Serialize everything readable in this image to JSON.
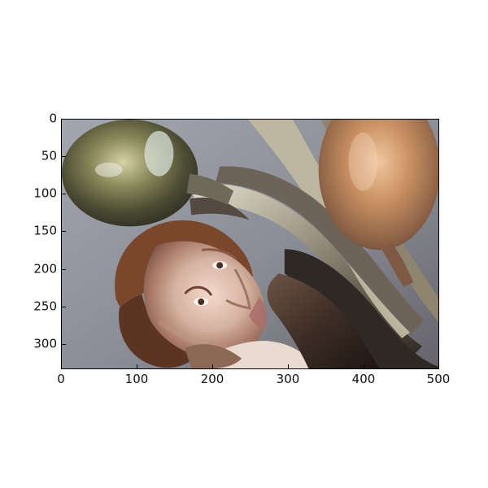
{
  "figure": {
    "type": "image-axes",
    "x_ticks": [
      "0",
      "100",
      "200",
      "300",
      "400",
      "500"
    ],
    "y_ticks": [
      "0",
      "50",
      "100",
      "150",
      "200",
      "250",
      "300"
    ],
    "x_range": [
      0,
      500
    ],
    "y_range": [
      0,
      330
    ]
  }
}
